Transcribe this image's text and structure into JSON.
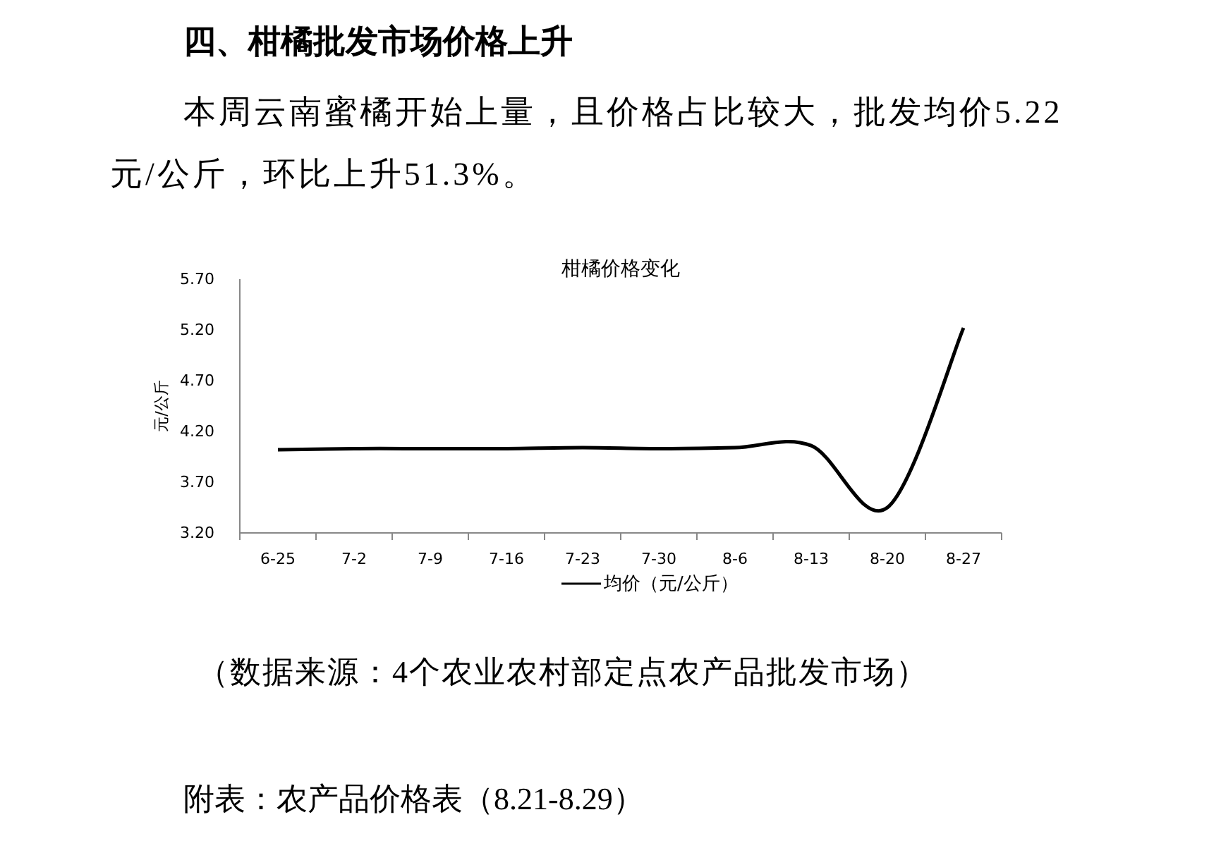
{
  "chart_data": {
    "type": "line",
    "title": "柑橘价格变化",
    "ylabel": "元/公斤",
    "categories": [
      "6-25",
      "7-2",
      "7-9",
      "7-16",
      "7-23",
      "7-30",
      "8-6",
      "8-13",
      "8-20",
      "8-27"
    ],
    "series": [
      {
        "name": "均价（元/公斤）",
        "color": "#000000",
        "values": [
          4.02,
          4.03,
          4.03,
          4.03,
          4.04,
          4.03,
          4.04,
          4.06,
          3.45,
          5.22
        ]
      }
    ],
    "ylim": [
      3.2,
      5.7
    ],
    "yticks": [
      {
        "value": 3.2,
        "label": "3.20"
      },
      {
        "value": 3.7,
        "label": "3.70"
      },
      {
        "value": 4.2,
        "label": "4.20"
      },
      {
        "value": 4.7,
        "label": "4.70"
      },
      {
        "value": 5.2,
        "label": "5.20"
      },
      {
        "value": 5.7,
        "label": "5.70"
      }
    ],
    "legend": "bottom",
    "grid": false,
    "marker": "none",
    "line_style": "solid",
    "annotations": [
      "四、柑橘批发市场价格上升",
      "本周云南蜜橘开始上量，且价格占比较大，批发均价5.22元/公斤，环比上升51.3%。",
      "（数据来源：4个农业农村部定点农产品批发市场）",
      "附表：农产品价格表（8.21-8.29）"
    ]
  }
}
